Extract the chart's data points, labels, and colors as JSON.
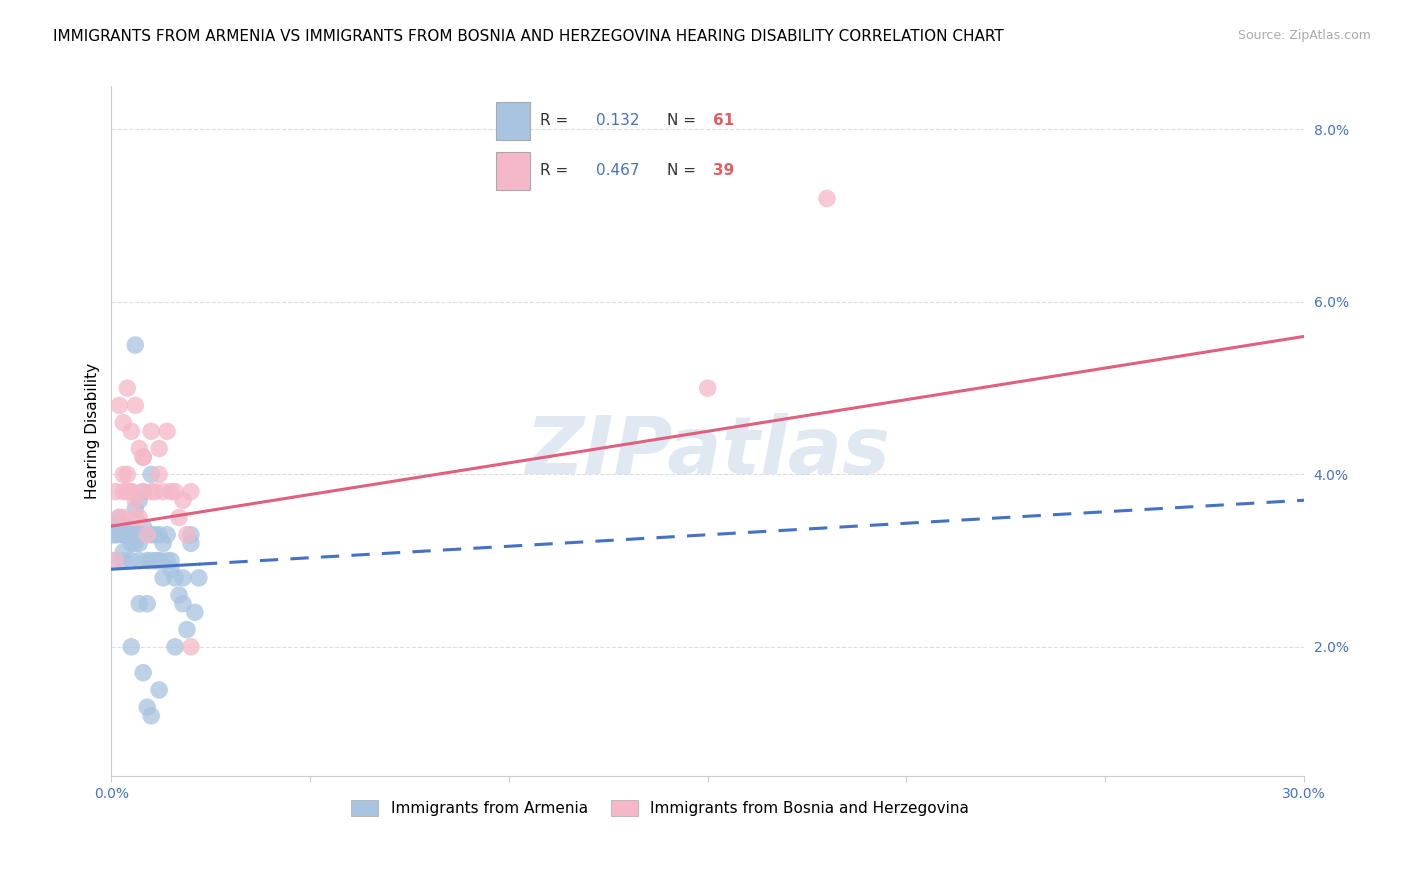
{
  "title": "IMMIGRANTS FROM ARMENIA VS IMMIGRANTS FROM BOSNIA AND HERZEGOVINA HEARING DISABILITY CORRELATION CHART",
  "source": "Source: ZipAtlas.com",
  "ylabel": "Hearing Disability",
  "series": [
    {
      "name": "Immigrants from Armenia",
      "R": 0.132,
      "N": 61,
      "color_scatter": "#a8c4e0",
      "color_line": "#4472c4",
      "x": [
        0.0005,
        0.001,
        0.001,
        0.001,
        0.002,
        0.002,
        0.002,
        0.003,
        0.003,
        0.003,
        0.003,
        0.004,
        0.004,
        0.004,
        0.005,
        0.005,
        0.005,
        0.006,
        0.006,
        0.006,
        0.006,
        0.007,
        0.007,
        0.007,
        0.007,
        0.008,
        0.008,
        0.008,
        0.009,
        0.009,
        0.01,
        0.01,
        0.01,
        0.011,
        0.011,
        0.012,
        0.012,
        0.012,
        0.013,
        0.013,
        0.014,
        0.014,
        0.015,
        0.015,
        0.016,
        0.016,
        0.017,
        0.018,
        0.018,
        0.019,
        0.02,
        0.02,
        0.021,
        0.022,
        0.012,
        0.008,
        0.009,
        0.01,
        0.006,
        0.007,
        0.005
      ],
      "y": [
        0.033,
        0.03,
        0.033,
        0.034,
        0.033,
        0.034,
        0.035,
        0.03,
        0.031,
        0.033,
        0.034,
        0.033,
        0.033,
        0.034,
        0.03,
        0.032,
        0.033,
        0.032,
        0.033,
        0.033,
        0.036,
        0.025,
        0.03,
        0.032,
        0.033,
        0.033,
        0.034,
        0.038,
        0.025,
        0.03,
        0.03,
        0.033,
        0.04,
        0.03,
        0.033,
        0.03,
        0.03,
        0.033,
        0.028,
        0.032,
        0.03,
        0.033,
        0.029,
        0.03,
        0.02,
        0.028,
        0.026,
        0.025,
        0.028,
        0.022,
        0.032,
        0.033,
        0.024,
        0.028,
        0.015,
        0.017,
        0.013,
        0.012,
        0.055,
        0.037,
        0.02
      ]
    },
    {
      "name": "Immigrants from Bosnia and Herzegovina",
      "R": 0.467,
      "N": 39,
      "color_scatter": "#f4b8c8",
      "color_line": "#e06080",
      "x": [
        0.001,
        0.001,
        0.002,
        0.002,
        0.003,
        0.003,
        0.003,
        0.004,
        0.004,
        0.005,
        0.005,
        0.006,
        0.006,
        0.007,
        0.007,
        0.008,
        0.008,
        0.009,
        0.01,
        0.01,
        0.011,
        0.012,
        0.013,
        0.014,
        0.015,
        0.016,
        0.017,
        0.018,
        0.019,
        0.02,
        0.003,
        0.004,
        0.005,
        0.006,
        0.008,
        0.15,
        0.02,
        0.012,
        0.18
      ],
      "y": [
        0.03,
        0.038,
        0.035,
        0.048,
        0.038,
        0.046,
        0.035,
        0.04,
        0.05,
        0.038,
        0.045,
        0.037,
        0.048,
        0.035,
        0.043,
        0.038,
        0.042,
        0.033,
        0.038,
        0.045,
        0.038,
        0.043,
        0.038,
        0.045,
        0.038,
        0.038,
        0.035,
        0.037,
        0.033,
        0.038,
        0.04,
        0.038,
        0.038,
        0.035,
        0.042,
        0.05,
        0.02,
        0.04,
        0.072
      ]
    }
  ],
  "line_blue": {
    "x0": 0.0,
    "y0": 0.029,
    "x1": 0.3,
    "y1": 0.037
  },
  "line_blue_solid_end": 0.022,
  "line_pink": {
    "x0": 0.0,
    "y0": 0.034,
    "x1": 0.3,
    "y1": 0.056
  },
  "xlim": [
    0.0,
    0.3
  ],
  "ylim": [
    0.005,
    0.085
  ],
  "yticks": [
    0.02,
    0.04,
    0.06,
    0.08
  ],
  "ytick_labels": [
    "2.0%",
    "4.0%",
    "6.0%",
    "8.0%"
  ],
  "xticks": [
    0.0,
    0.05,
    0.1,
    0.15,
    0.2,
    0.25,
    0.3
  ],
  "xtick_labels": [
    "0.0%",
    "",
    "",
    "",
    "",
    "",
    "30.0%"
  ],
  "grid_color": "#dddddd",
  "background_color": "#ffffff",
  "watermark": "ZIPatlas",
  "watermark_color": "#c8d8e8",
  "legend_R_color": "#4472c4",
  "legend_N_color": "#e06060",
  "title_fontsize": 11,
  "axis_tick_color": "#4472c4"
}
